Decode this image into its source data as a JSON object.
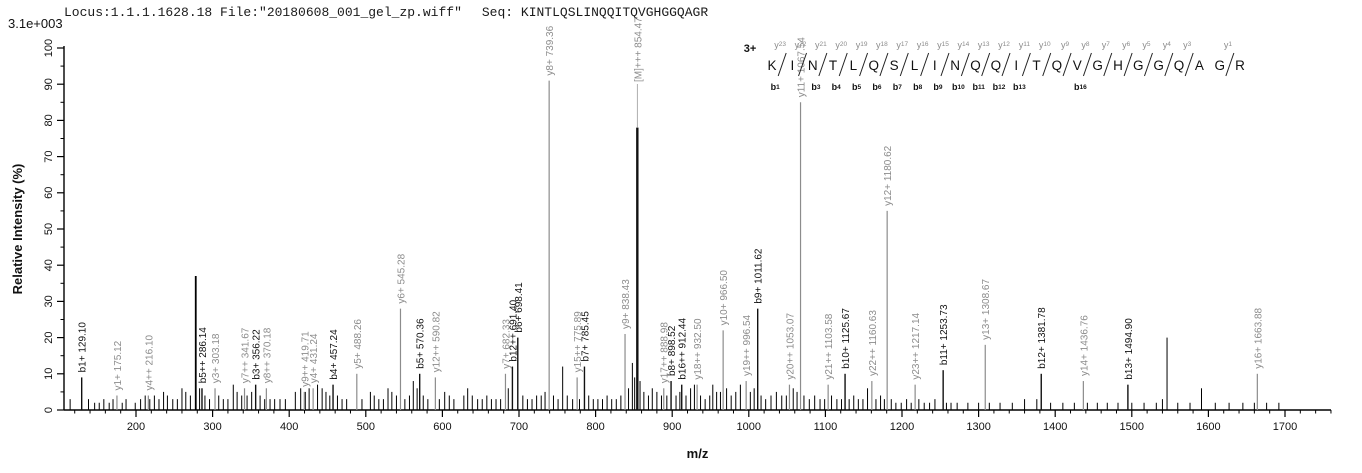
{
  "header": {
    "intensity_scale": "3.1e+003",
    "locus_file": "Locus:1.1.1.1628.18 File:\"20180608_001_gel_zp.wiff\"",
    "seq_label": "Seq:",
    "sequence": "KINTLQSLINQQITQVGHGGQAGR"
  },
  "annotation": {
    "charge_label": "3+",
    "residues": [
      "K",
      "I",
      "N",
      "T",
      "L",
      "Q",
      "S",
      "L",
      "I",
      "N",
      "Q",
      "Q",
      "I",
      "T",
      "Q",
      "V",
      "G",
      "H",
      "G",
      "G",
      "Q",
      "A",
      "G",
      "R"
    ],
    "cleavages": [
      {
        "after": 1,
        "y": "y23",
        "b": "b1"
      },
      {
        "after": 2,
        "y": "y22",
        "b": null
      },
      {
        "after": 3,
        "y": "y21",
        "b": "b3"
      },
      {
        "after": 4,
        "y": "y20",
        "b": "b4"
      },
      {
        "after": 5,
        "y": "y19",
        "b": "b5"
      },
      {
        "after": 6,
        "y": "y18",
        "b": "b6"
      },
      {
        "after": 7,
        "y": "y17",
        "b": "b7"
      },
      {
        "after": 8,
        "y": "y16",
        "b": "b8"
      },
      {
        "after": 9,
        "y": "y15",
        "b": "b9"
      },
      {
        "after": 10,
        "y": "y14",
        "b": "b10"
      },
      {
        "after": 11,
        "y": "y13",
        "b": "b11"
      },
      {
        "after": 12,
        "y": "y12",
        "b": "b12"
      },
      {
        "after": 13,
        "y": "y11",
        "b": "b13"
      },
      {
        "after": 14,
        "y": "y10",
        "b": null
      },
      {
        "after": 15,
        "y": "y9",
        "b": null
      },
      {
        "after": 16,
        "y": "y8",
        "b": "b16"
      },
      {
        "after": 17,
        "y": "y7",
        "b": null
      },
      {
        "after": 18,
        "y": "y6",
        "b": null
      },
      {
        "after": 19,
        "y": "y5",
        "b": null
      },
      {
        "after": 20,
        "y": "y4",
        "b": null
      },
      {
        "after": 21,
        "y": "y3",
        "b": null
      },
      {
        "after": 23,
        "y": "y1",
        "b": null
      }
    ]
  },
  "chart_data": {
    "type": "bar",
    "subtype": "ms2-mass-spectrum",
    "title": "Locus:1.1.1.1628.18 File:\"20180608_001_gel_zp.wiff\"  Seq: KINTLQSLINQQITQVGHGGQAGR",
    "xlabel": "m/z",
    "ylabel": "Relative Intensity (%)",
    "xlim": [
      106,
      1775
    ],
    "ylim": [
      0,
      100
    ],
    "x_ticks": [
      200,
      300,
      400,
      500,
      600,
      700,
      800,
      900,
      1000,
      1100,
      1200,
      1300,
      1400,
      1500,
      1600,
      1700
    ],
    "x_minor_step": 20,
    "y_ticks": [
      0,
      10,
      20,
      30,
      40,
      50,
      60,
      70,
      80,
      90,
      100
    ],
    "y_minor_step": 5,
    "colors": {
      "b_series": "#111111",
      "y_series": "#8c8c8c",
      "noise": "#000000",
      "axis": "#000000"
    },
    "labeled_peaks": [
      {
        "mz": 129.1,
        "label": "b1+ 129.10",
        "ion": "b",
        "intensity": 9
      },
      {
        "mz": 175.12,
        "label": "y1+ 175.12",
        "ion": "y",
        "intensity": 4
      },
      {
        "mz": 216.1,
        "label": "y4++ 216.10",
        "ion": "y",
        "intensity": 4
      },
      {
        "mz": 286.14,
        "label": "b5++ 286.14",
        "ion": "b",
        "intensity": 6
      },
      {
        "mz": 303.18,
        "label": "y3+ 303.18",
        "ion": "y",
        "intensity": 6
      },
      {
        "mz": 341.67,
        "label": "y7++ 341.67",
        "ion": "y",
        "intensity": 6
      },
      {
        "mz": 356.22,
        "label": "b3+ 356.22",
        "ion": "b",
        "intensity": 7
      },
      {
        "mz": 370.18,
        "label": "y8++ 370.18",
        "ion": "y",
        "intensity": 6
      },
      {
        "mz": 419.71,
        "label": "y9++ 419.71",
        "ion": "y",
        "intensity": 5
      },
      {
        "mz": 431.24,
        "label": "y4+ 431.24",
        "ion": "y",
        "intensity": 6
      },
      {
        "mz": 457.24,
        "label": "b4+ 457.24",
        "ion": "b",
        "intensity": 7
      },
      {
        "mz": 488.26,
        "label": "y5+ 488.26",
        "ion": "y",
        "intensity": 10
      },
      {
        "mz": 545.28,
        "label": "y6+ 545.28",
        "ion": "y",
        "intensity": 28
      },
      {
        "mz": 570.36,
        "label": "b5+ 570.36",
        "ion": "b",
        "intensity": 10
      },
      {
        "mz": 590.82,
        "label": "y12++ 590.82",
        "ion": "y",
        "intensity": 9
      },
      {
        "mz": 682.33,
        "label": "y7+ 682.33",
        "ion": "y",
        "intensity": 10
      },
      {
        "mz": 691.4,
        "label": "b12++ 691.40",
        "ion": "b",
        "intensity": 12
      },
      {
        "mz": 698.41,
        "label": "b6+ 698.41",
        "ion": "b",
        "intensity": 20
      },
      {
        "mz": 739.36,
        "label": "y8+ 739.36",
        "ion": "y",
        "intensity": 91
      },
      {
        "mz": 775.89,
        "label": "y15++ 775.89",
        "ion": "y",
        "intensity": 9
      },
      {
        "mz": 785.45,
        "label": "b7+ 785.45",
        "ion": "b",
        "intensity": 12
      },
      {
        "mz": 838.43,
        "label": "y9+ 838.43",
        "ion": "y",
        "intensity": 21
      },
      {
        "mz": 854.47,
        "label": "[M]+++ 854.47",
        "ion": "M",
        "intensity": 78,
        "label_y": 82
      },
      {
        "mz": 888.98,
        "label": "y17++ 888.98",
        "ion": "y",
        "intensity": 6
      },
      {
        "mz": 898.52,
        "label": "b8+ 898.52",
        "ion": "b",
        "intensity": 8
      },
      {
        "mz": 912.44,
        "label": "b16++ 912.44",
        "ion": "b",
        "intensity": 7
      },
      {
        "mz": 932.5,
        "label": "y18++ 932.50",
        "ion": "y",
        "intensity": 7
      },
      {
        "mz": 966.5,
        "label": "y10+ 966.50",
        "ion": "y",
        "intensity": 22
      },
      {
        "mz": 996.54,
        "label": "y19++ 996.54",
        "ion": "y",
        "intensity": 8
      },
      {
        "mz": 1011.62,
        "label": "b9+ 1011.62",
        "ion": "b",
        "intensity": 28
      },
      {
        "mz": 1053.07,
        "label": "y20++ 1053.07",
        "ion": "y",
        "intensity": 7
      },
      {
        "mz": 1067.54,
        "label": "y11+ 1067.54",
        "ion": "y",
        "intensity": 85
      },
      {
        "mz": 1103.58,
        "label": "y21++ 1103.58",
        "ion": "y",
        "intensity": 7
      },
      {
        "mz": 1125.67,
        "label": "b10+ 1125.67",
        "ion": "b",
        "intensity": 10
      },
      {
        "mz": 1160.63,
        "label": "y22++ 1160.63",
        "ion": "y",
        "intensity": 8
      },
      {
        "mz": 1180.62,
        "label": "y12+ 1180.62",
        "ion": "y",
        "intensity": 55
      },
      {
        "mz": 1217.14,
        "label": "y23++ 1217.14",
        "ion": "y",
        "intensity": 7
      },
      {
        "mz": 1253.73,
        "label": "b11+ 1253.73",
        "ion": "b",
        "intensity": 11
      },
      {
        "mz": 1308.67,
        "label": "y13+ 1308.67",
        "ion": "y",
        "intensity": 18
      },
      {
        "mz": 1381.78,
        "label": "b12+ 1381.78",
        "ion": "b",
        "intensity": 10
      },
      {
        "mz": 1436.76,
        "label": "y14+ 1436.76",
        "ion": "y",
        "intensity": 8
      },
      {
        "mz": 1494.9,
        "label": "b13+ 1494.90",
        "ion": "b",
        "intensity": 7
      },
      {
        "mz": 1663.88,
        "label": "y16+ 1663.88",
        "ion": "y",
        "intensity": 10
      }
    ],
    "unlabeled_peaks": [
      [
        114,
        3
      ],
      [
        138,
        3
      ],
      [
        146,
        2
      ],
      [
        152,
        2
      ],
      [
        158,
        3
      ],
      [
        165,
        2
      ],
      [
        170,
        3
      ],
      [
        182,
        2
      ],
      [
        187,
        3
      ],
      [
        199,
        2
      ],
      [
        206,
        3
      ],
      [
        212,
        4
      ],
      [
        218,
        3
      ],
      [
        224,
        4
      ],
      [
        230,
        3
      ],
      [
        236,
        5
      ],
      [
        241,
        4
      ],
      [
        248,
        3
      ],
      [
        254,
        3
      ],
      [
        260,
        6
      ],
      [
        265,
        5
      ],
      [
        271,
        4
      ],
      [
        278,
        37
      ],
      [
        283,
        6
      ],
      [
        290,
        4
      ],
      [
        296,
        3
      ],
      [
        308,
        4
      ],
      [
        314,
        3
      ],
      [
        320,
        3
      ],
      [
        327,
        7
      ],
      [
        332,
        5
      ],
      [
        338,
        4
      ],
      [
        345,
        4
      ],
      [
        351,
        5
      ],
      [
        362,
        4
      ],
      [
        368,
        3
      ],
      [
        375,
        3
      ],
      [
        381,
        3
      ],
      [
        388,
        3
      ],
      [
        395,
        3
      ],
      [
        408,
        5
      ],
      [
        415,
        6
      ],
      [
        421,
        5
      ],
      [
        426,
        6
      ],
      [
        437,
        7
      ],
      [
        443,
        6
      ],
      [
        448,
        5
      ],
      [
        453,
        4
      ],
      [
        463,
        4
      ],
      [
        469,
        3
      ],
      [
        475,
        3
      ],
      [
        495,
        3
      ],
      [
        506,
        5
      ],
      [
        511,
        4
      ],
      [
        517,
        3
      ],
      [
        523,
        3
      ],
      [
        529,
        6
      ],
      [
        534,
        5
      ],
      [
        540,
        4
      ],
      [
        551,
        3
      ],
      [
        557,
        4
      ],
      [
        562,
        8
      ],
      [
        567,
        6
      ],
      [
        575,
        4
      ],
      [
        581,
        3
      ],
      [
        596,
        3
      ],
      [
        603,
        5
      ],
      [
        609,
        4
      ],
      [
        615,
        3
      ],
      [
        628,
        4
      ],
      [
        633,
        6
      ],
      [
        639,
        4
      ],
      [
        646,
        3
      ],
      [
        652,
        3
      ],
      [
        658,
        4
      ],
      [
        664,
        3
      ],
      [
        670,
        3
      ],
      [
        676,
        3
      ],
      [
        686,
        6
      ],
      [
        705,
        4
      ],
      [
        711,
        3
      ],
      [
        717,
        3
      ],
      [
        723,
        4
      ],
      [
        729,
        4
      ],
      [
        734,
        5
      ],
      [
        745,
        4
      ],
      [
        751,
        3
      ],
      [
        757,
        12
      ],
      [
        763,
        4
      ],
      [
        770,
        3
      ],
      [
        779,
        3
      ],
      [
        791,
        4
      ],
      [
        797,
        3
      ],
      [
        803,
        3
      ],
      [
        809,
        3
      ],
      [
        815,
        4
      ],
      [
        821,
        3
      ],
      [
        827,
        3
      ],
      [
        833,
        4
      ],
      [
        843,
        6
      ],
      [
        848,
        13
      ],
      [
        851,
        9
      ],
      [
        858,
        8
      ],
      [
        863,
        5
      ],
      [
        869,
        4
      ],
      [
        874,
        6
      ],
      [
        880,
        5
      ],
      [
        886,
        4
      ],
      [
        893,
        4
      ],
      [
        905,
        4
      ],
      [
        910,
        5
      ],
      [
        918,
        4
      ],
      [
        924,
        6
      ],
      [
        929,
        7
      ],
      [
        937,
        4
      ],
      [
        943,
        3
      ],
      [
        949,
        4
      ],
      [
        953,
        7
      ],
      [
        958,
        5
      ],
      [
        963,
        5
      ],
      [
        971,
        6
      ],
      [
        977,
        4
      ],
      [
        983,
        5
      ],
      [
        989,
        7
      ],
      [
        1002,
        5
      ],
      [
        1007,
        6
      ],
      [
        1016,
        4
      ],
      [
        1022,
        3
      ],
      [
        1029,
        4
      ],
      [
        1036,
        5
      ],
      [
        1043,
        4
      ],
      [
        1049,
        4
      ],
      [
        1058,
        6
      ],
      [
        1063,
        5
      ],
      [
        1072,
        4
      ],
      [
        1079,
        3
      ],
      [
        1086,
        4
      ],
      [
        1093,
        3
      ],
      [
        1099,
        3
      ],
      [
        1108,
        4
      ],
      [
        1115,
        3
      ],
      [
        1121,
        3
      ],
      [
        1131,
        3
      ],
      [
        1137,
        4
      ],
      [
        1143,
        3
      ],
      [
        1149,
        3
      ],
      [
        1155,
        6
      ],
      [
        1166,
        3
      ],
      [
        1172,
        4
      ],
      [
        1177,
        3
      ],
      [
        1186,
        3
      ],
      [
        1192,
        2
      ],
      [
        1199,
        2
      ],
      [
        1206,
        3
      ],
      [
        1212,
        2
      ],
      [
        1222,
        3
      ],
      [
        1229,
        2
      ],
      [
        1236,
        2
      ],
      [
        1243,
        3
      ],
      [
        1258,
        2
      ],
      [
        1264,
        2
      ],
      [
        1272,
        2
      ],
      [
        1286,
        2
      ],
      [
        1300,
        2
      ],
      [
        1314,
        2
      ],
      [
        1328,
        2
      ],
      [
        1344,
        2
      ],
      [
        1360,
        3
      ],
      [
        1376,
        3
      ],
      [
        1394,
        2
      ],
      [
        1410,
        2
      ],
      [
        1425,
        2
      ],
      [
        1442,
        2
      ],
      [
        1455,
        2
      ],
      [
        1468,
        2
      ],
      [
        1482,
        2
      ],
      [
        1500,
        2
      ],
      [
        1516,
        2
      ],
      [
        1532,
        2
      ],
      [
        1540,
        3
      ],
      [
        1546,
        20
      ],
      [
        1560,
        2
      ],
      [
        1576,
        2
      ],
      [
        1591,
        6
      ],
      [
        1609,
        2
      ],
      [
        1627,
        2
      ],
      [
        1645,
        2
      ],
      [
        1660,
        2
      ],
      [
        1676,
        2
      ],
      [
        1692,
        2
      ]
    ]
  }
}
